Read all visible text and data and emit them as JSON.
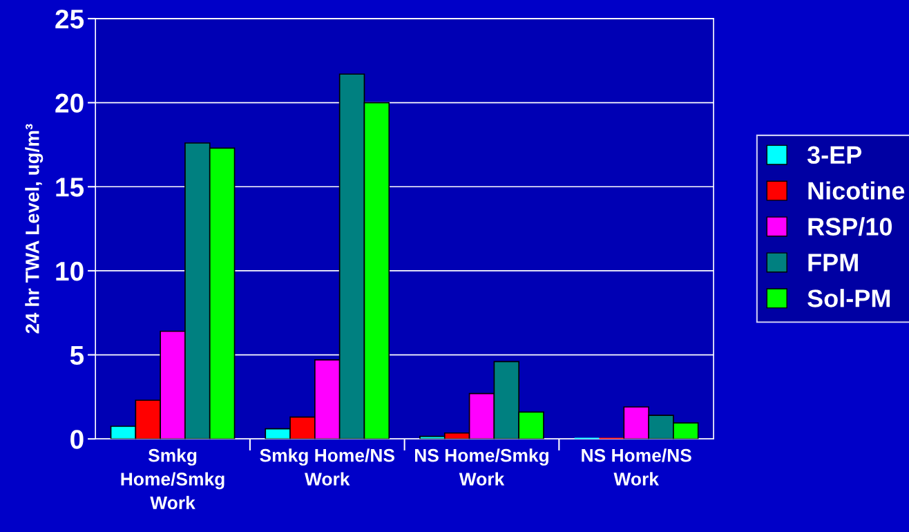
{
  "chart_data": {
    "type": "bar",
    "ylabel": "24 hr TWA Level, ug/m³",
    "categories": [
      "Smkg Home/Smkg Work",
      "Smkg Home/NS Work",
      "NS Home/Smkg Work",
      "NS Home/NS Work"
    ],
    "series": [
      {
        "name": "3-EP",
        "color": "#00ffff",
        "values": [
          0.75,
          0.6,
          0.15,
          0.0
        ]
      },
      {
        "name": "Nicotine",
        "color": "#ff0000",
        "values": [
          2.3,
          1.3,
          0.35,
          0.0
        ]
      },
      {
        "name": "RSP/10",
        "color": "#ff00ff",
        "values": [
          6.4,
          4.7,
          2.7,
          1.9
        ]
      },
      {
        "name": "FPM",
        "color": "#008080",
        "values": [
          17.6,
          21.7,
          4.6,
          1.4
        ]
      },
      {
        "name": "Sol-PM",
        "color": "#00ff00",
        "values": [
          17.3,
          20.0,
          1.6,
          0.95
        ]
      }
    ],
    "ylim": [
      0,
      25
    ],
    "yticks": [
      0,
      5,
      10,
      15,
      20,
      25
    ],
    "grid": "y",
    "legend": "right"
  }
}
